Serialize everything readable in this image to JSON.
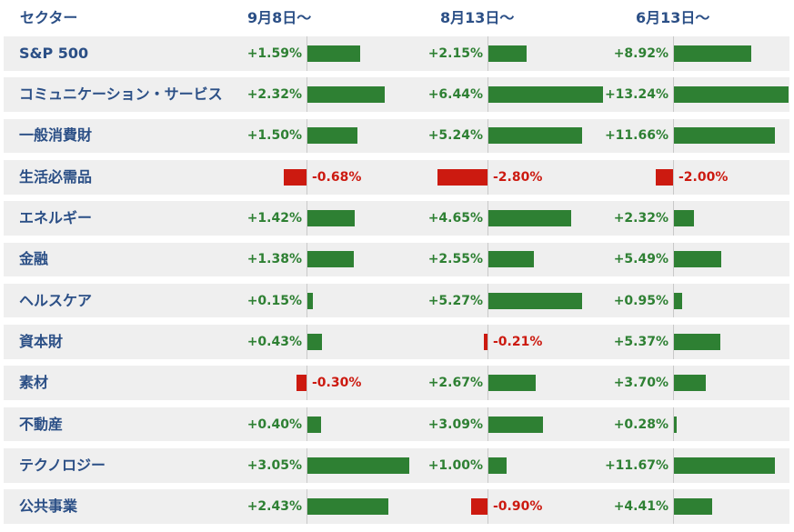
{
  "header": {
    "sector_label": "セクター",
    "periods": [
      "9月8日〜",
      "8月13日〜",
      "6月13日〜"
    ]
  },
  "colors": {
    "positive": "#2e8033",
    "negative": "#cc1a10",
    "label_text": "#2b4f86",
    "row_bg": "#efefef"
  },
  "chart_data": {
    "type": "bar",
    "orientation": "horizontal",
    "categories": [
      "S&P 500",
      "コミュニケーション・サービス",
      "一般消費財",
      "生活必需品",
      "エネルギー",
      "金融",
      "ヘルスケア",
      "資本財",
      "素材",
      "不動産",
      "テクノロジー",
      "公共事業"
    ],
    "series": [
      {
        "name": "9月8日〜",
        "values": [
          1.59,
          2.32,
          1.5,
          -0.68,
          1.42,
          1.38,
          0.15,
          0.43,
          -0.3,
          0.4,
          3.05,
          2.43
        ],
        "labels": [
          "+1.59%",
          "+2.32%",
          "+1.50%",
          "-0.68%",
          "+1.42%",
          "+1.38%",
          "+0.15%",
          "+0.43%",
          "-0.30%",
          "+0.40%",
          "+3.05%",
          "+2.43%"
        ]
      },
      {
        "name": "8月13日〜",
        "values": [
          2.15,
          6.44,
          5.24,
          -2.8,
          4.65,
          2.55,
          5.27,
          -0.21,
          2.67,
          3.09,
          1.0,
          -0.9
        ],
        "labels": [
          "+2.15%",
          "+6.44%",
          "+5.24%",
          "-2.80%",
          "+4.65%",
          "+2.55%",
          "+5.27%",
          "-0.21%",
          "+2.67%",
          "+3.09%",
          "+1.00%",
          "-0.90%"
        ]
      },
      {
        "name": "6月13日〜",
        "values": [
          8.92,
          13.24,
          11.66,
          -2.0,
          2.32,
          5.49,
          0.95,
          5.37,
          3.7,
          0.28,
          11.67,
          4.41
        ],
        "labels": [
          "+8.92%",
          "+13.24%",
          "+11.66%",
          "-2.00%",
          "+2.32%",
          "+5.49%",
          "+0.95%",
          "+5.37%",
          "+3.70%",
          "+0.28%",
          "+11.67%",
          "+4.41%"
        ]
      }
    ],
    "unit": "%"
  }
}
